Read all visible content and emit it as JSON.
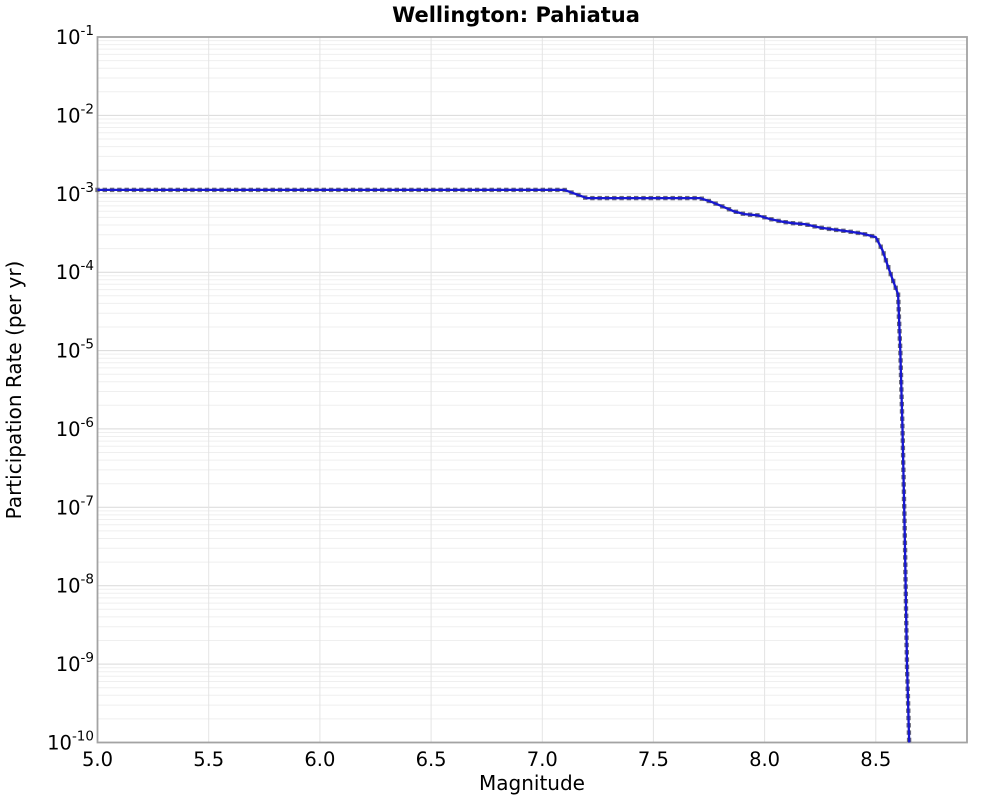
{
  "chart_data": {
    "type": "line",
    "title": "Wellington: Pahiatua",
    "xlabel": "Magnitude",
    "ylabel": "Participation Rate (per yr)",
    "xlim": [
      5.0,
      8.91
    ],
    "ylim_exponents": [
      -1,
      -10
    ],
    "y_scale": "log",
    "grid": "on",
    "legend": "none",
    "x_major_ticks": [
      5.0,
      5.5,
      6.0,
      6.5,
      7.0,
      7.5,
      8.0,
      8.5
    ],
    "x_tick_labels": [
      "5.0",
      "5.5",
      "6.0",
      "6.5",
      "7.0",
      "7.5",
      "8.0",
      "8.5"
    ],
    "y_tick_exponents": [
      -1,
      -2,
      -3,
      -4,
      -5,
      -6,
      -7,
      -8,
      -9,
      -10
    ],
    "y_tick_base": "10",
    "colors": {
      "line": "#1717cf",
      "marker": "#696975",
      "grid_minor": "#efefef",
      "grid_major": "#d9d9d9",
      "spine": "#a3a3a3",
      "text": "#000000",
      "background": "#ffffff"
    },
    "series": [
      {
        "name": "participation-rate",
        "marker": "square",
        "points": [
          [
            5.0,
            0.00112
          ],
          [
            7.1,
            0.00112
          ],
          [
            7.2,
            0.00088
          ],
          [
            7.71,
            0.00088
          ],
          [
            7.76,
            0.00079
          ],
          [
            7.81,
            0.00069
          ],
          [
            7.86,
            0.0006
          ],
          [
            7.91,
            0.00055
          ],
          [
            7.97,
            0.00053
          ],
          [
            8.02,
            0.00048
          ],
          [
            8.08,
            0.00044
          ],
          [
            8.13,
            0.00042
          ],
          [
            8.18,
            0.00041
          ],
          [
            8.25,
            0.00037
          ],
          [
            8.31,
            0.00035
          ],
          [
            8.38,
            0.00033
          ],
          [
            8.44,
            0.00031
          ],
          [
            8.5,
            0.00028
          ],
          [
            8.53,
            0.00019
          ],
          [
            8.55,
            0.00013
          ],
          [
            8.57,
            8.9e-05
          ],
          [
            8.6,
            5.2e-05
          ],
          [
            8.61,
            1e-05
          ],
          [
            8.62,
            1e-06
          ],
          [
            8.63,
            5e-08
          ],
          [
            8.64,
            1e-09
          ],
          [
            8.65,
            1e-10
          ]
        ]
      }
    ]
  }
}
